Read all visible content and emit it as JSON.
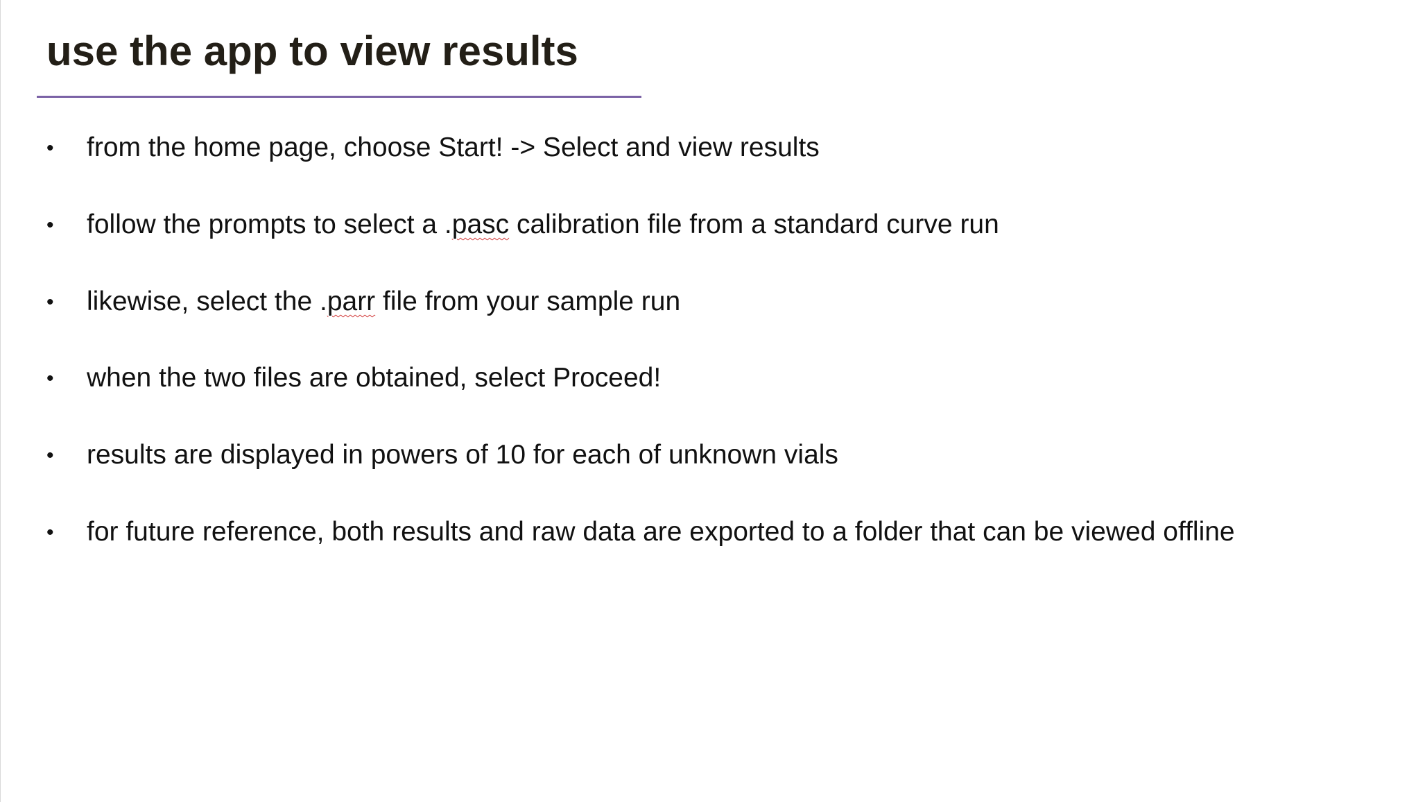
{
  "slide": {
    "title": "use the app to view results",
    "bullets": [
      {
        "symbol": "•",
        "parts": [
          "from the home page, choose Start! -> Select and view results"
        ]
      },
      {
        "symbol": "•",
        "parts": [
          "follow the prompts to select a .",
          "pasc",
          " calibration file from a standard curve run"
        ]
      },
      {
        "symbol": "•",
        "parts": [
          "likewise, select the .",
          "parr",
          " file from your sample run"
        ]
      },
      {
        "symbol": "•",
        "parts": [
          "when the two files are obtained, select Proceed!"
        ]
      },
      {
        "symbol": "•",
        "parts": [
          "results are displayed in powers of 10 for each of unknown vials"
        ]
      },
      {
        "symbol": "•",
        "parts": [
          "for future reference, both results and raw data are exported to a folder that can be viewed offline"
        ]
      }
    ]
  },
  "colors": {
    "title_text": "#231f17",
    "title_rule": "#7b62a6",
    "body_text": "#111111",
    "spellcheck_underline": "#d23a3a"
  }
}
